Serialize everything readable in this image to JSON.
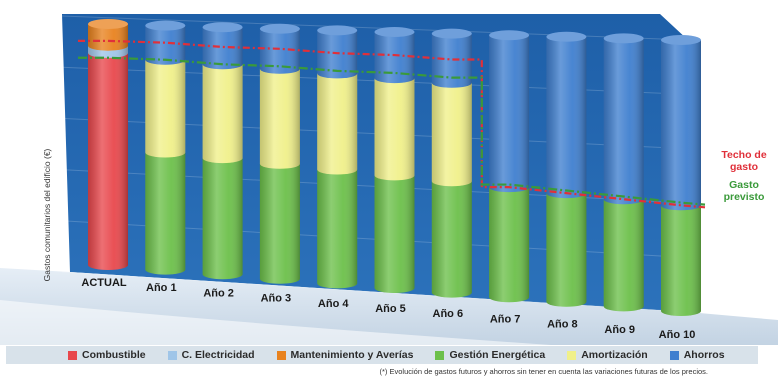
{
  "chart_data": {
    "type": "bar",
    "stacked": true,
    "ylabel": "Gastos comunitarios del edificio (€)",
    "categories": [
      "ACTUAL",
      "Año 1",
      "Año 2",
      "Año 3",
      "Año 4",
      "Año 5",
      "Año 6",
      "Año 7",
      "Año 8",
      "Año 9",
      "Año 10"
    ],
    "series": [
      {
        "name": "Combustible",
        "color": "#e8474c",
        "values": [
          88,
          0,
          0,
          0,
          0,
          0,
          0,
          0,
          0,
          0,
          0
        ]
      },
      {
        "name": "C. Electricidad",
        "color": "#9fc5e8",
        "values": [
          3,
          0,
          0,
          0,
          0,
          0,
          0,
          0,
          0,
          0,
          0
        ]
      },
      {
        "name": "Mantenimiento y Averías",
        "color": "#e8821e",
        "values": [
          9,
          0,
          0,
          0,
          0,
          0,
          0,
          0,
          0,
          0,
          0
        ]
      },
      {
        "name": "Gestión Energética",
        "color": "#6cc04a",
        "values": [
          0,
          48,
          47,
          46,
          45,
          44,
          43,
          42,
          41,
          40,
          39
        ]
      },
      {
        "name": "Amortización",
        "color": "#f0f08a",
        "values": [
          0,
          38,
          38,
          38,
          38,
          38,
          38,
          0,
          0,
          0,
          0
        ]
      },
      {
        "name": "Ahorros",
        "color": "#3f7fcf",
        "values": [
          0,
          14,
          15,
          16,
          17,
          18,
          19,
          58,
          59,
          60,
          61
        ]
      }
    ],
    "ylim": [
      0,
      100
    ],
    "grid": true,
    "legend": "bottom",
    "annotations": [
      {
        "text": "Techo de gasto",
        "color": "#e0303a",
        "line_values": [
          93,
          93,
          92,
          92,
          91,
          91,
          90,
          42,
          41,
          40,
          39
        ]
      },
      {
        "text": "Gasto previsto",
        "color": "#3a9a3a",
        "line_values": [
          86,
          86,
          85,
          85,
          84,
          84,
          83,
          43,
          42,
          41,
          40
        ]
      }
    ]
  },
  "footnote": "(*) Evolución de gastos futuros y ahorros sin tener en cuenta las variaciones futuras de los precios."
}
